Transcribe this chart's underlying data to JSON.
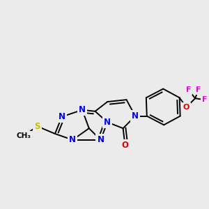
{
  "background_color": "#ebebeb",
  "bond_color": "#000000",
  "atom_colors": {
    "N": "#0000ee",
    "S": "#ccbb00",
    "O": "#dd0000",
    "F": "#ee00ee",
    "C": "#000000"
  },
  "bond_lw": 1.4,
  "font_size_N": 8.5,
  "font_size_S": 8.5,
  "font_size_O": 8.5,
  "font_size_F": 8.0,
  "font_size_Me": 7.5
}
